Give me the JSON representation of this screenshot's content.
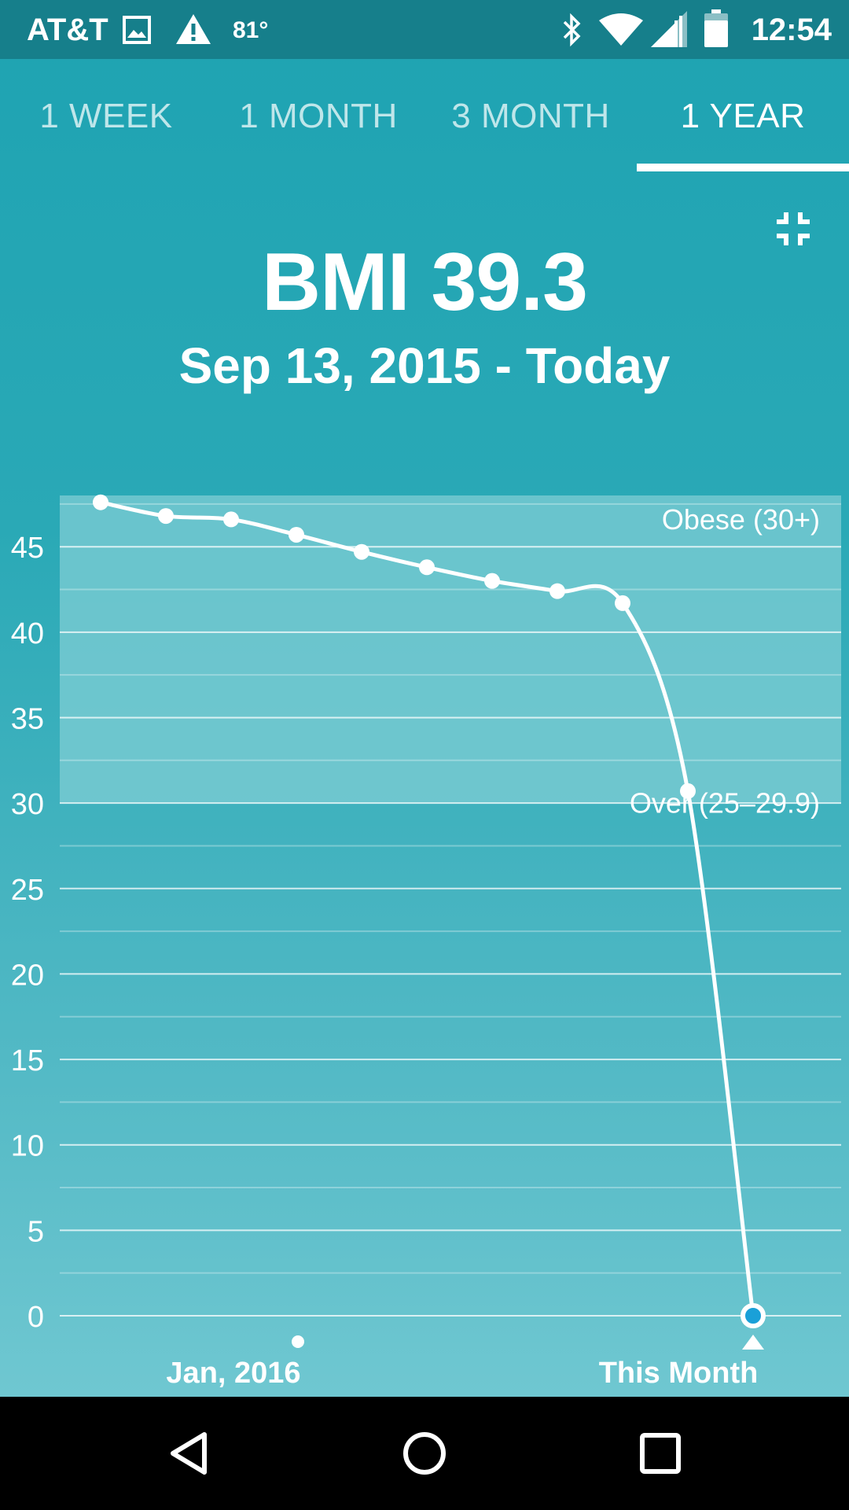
{
  "status_bar": {
    "carrier": "AT&T",
    "temperature": "81°",
    "time": "12:54",
    "icons": [
      "image-icon",
      "warning-icon",
      "bluetooth-icon",
      "wifi-icon",
      "signal-icon",
      "battery-icon"
    ]
  },
  "tabs": [
    {
      "label": "1 WEEK",
      "active": false
    },
    {
      "label": "1 MONTH",
      "active": false
    },
    {
      "label": "3 MONTH",
      "active": false
    },
    {
      "label": "1 YEAR",
      "active": true
    }
  ],
  "header": {
    "title": "BMI 39.3",
    "date_range": "Sep 13, 2015 - Today"
  },
  "colors": {
    "accent": "#ffffff",
    "status_bar": "#167f8b",
    "obese_band": "#7fcdd4",
    "selected_point": "#1aa0d8"
  },
  "chart_data": {
    "type": "line",
    "ylim": [
      0,
      48
    ],
    "yticks": [
      0,
      5,
      10,
      15,
      20,
      25,
      30,
      35,
      40,
      45
    ],
    "grid": true,
    "x_labels": [
      "Jan, 2016",
      "This Month"
    ],
    "values": [
      47.6,
      46.8,
      46.6,
      45.7,
      44.7,
      43.8,
      43.0,
      42.4,
      41.7,
      30.7,
      0
    ],
    "bands": [
      {
        "label": "Obese (30+)",
        "from": 30,
        "to": 48
      },
      {
        "label": "Over (25–29.9)",
        "from": 25,
        "to": 29.9
      }
    ]
  },
  "nav_bar": {
    "buttons": [
      "back-icon",
      "home-icon",
      "recents-icon"
    ]
  }
}
